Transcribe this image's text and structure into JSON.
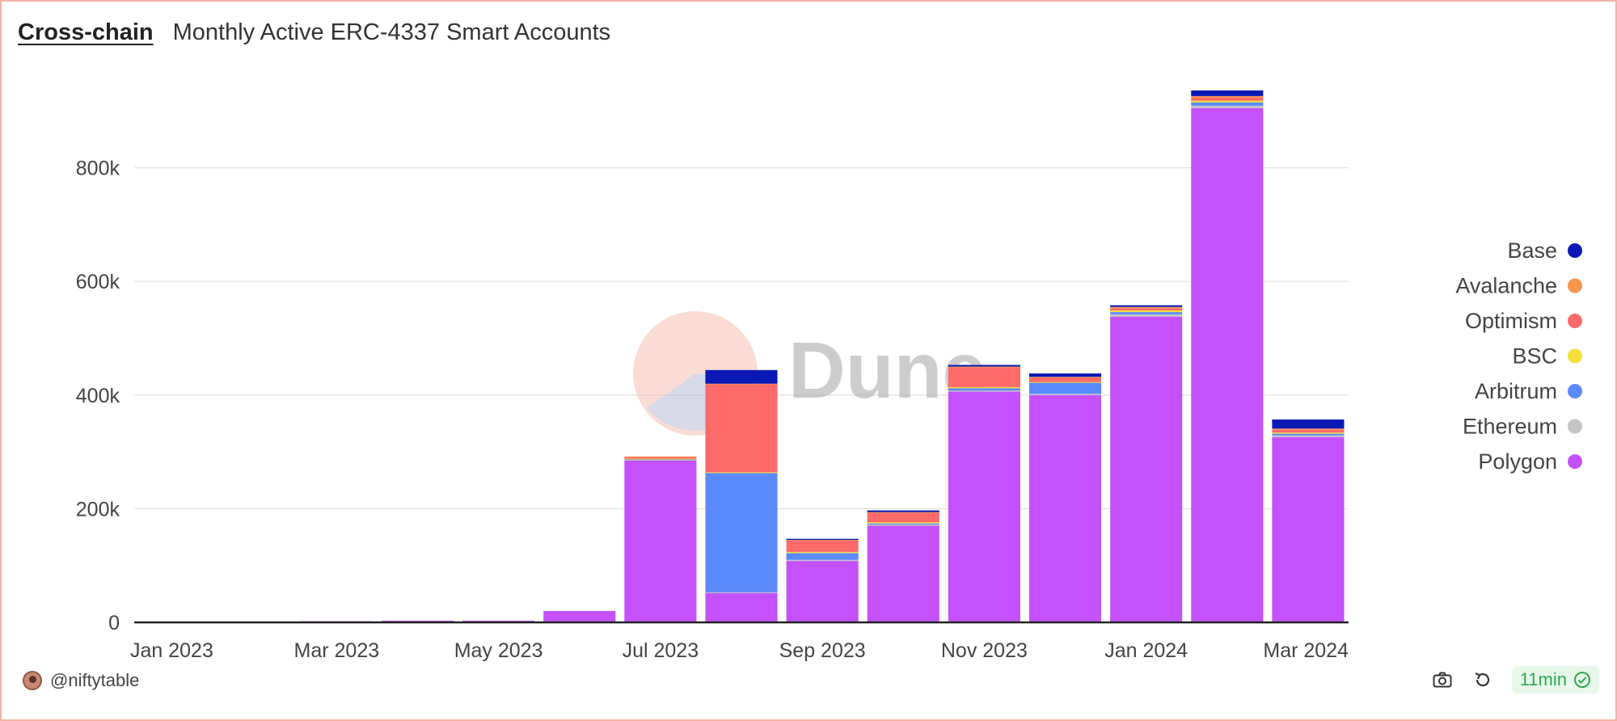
{
  "header": {
    "link_label": "Cross-chain",
    "title": "Monthly Active ERC-4337 Smart Accounts"
  },
  "footer": {
    "author": "@niftytable",
    "refresh_age": "11min"
  },
  "watermark": "Dune",
  "chart_data": {
    "type": "bar",
    "stacked": true,
    "categories": [
      "Jan 2023",
      "Feb 2023",
      "Mar 2023",
      "Apr 2023",
      "May 2023",
      "Jun 2023",
      "Jul 2023",
      "Aug 2023",
      "Sep 2023",
      "Oct 2023",
      "Nov 2023",
      "Dec 2023",
      "Jan 2024",
      "Feb 2024",
      "Mar 2024"
    ],
    "x_tick_labels": [
      "Jan 2023",
      "Mar 2023",
      "May 2023",
      "Jul 2023",
      "Sep 2023",
      "Nov 2023",
      "Jan 2024",
      "Mar 2024"
    ],
    "y_ticks": [
      0,
      200000,
      400000,
      600000,
      800000
    ],
    "y_tick_labels": [
      "0",
      "200k",
      "400k",
      "600k",
      "800k"
    ],
    "ylim": [
      0,
      960000
    ],
    "grid": true,
    "legend_position": "right",
    "title": "Monthly Active ERC-4337 Smart Accounts",
    "series": [
      {
        "name": "Polygon",
        "color": "#c451fb",
        "values": [
          500,
          1000,
          2000,
          3000,
          3000,
          20000,
          285000,
          52000,
          108000,
          170000,
          406000,
          400000,
          538000,
          905000,
          326000
        ]
      },
      {
        "name": "Ethereum",
        "color": "#c4c4c4",
        "values": [
          0,
          0,
          0,
          0,
          0,
          0,
          1000,
          1000,
          2000,
          2000,
          2000,
          2000,
          4000,
          4000,
          3000
        ]
      },
      {
        "name": "Arbitrum",
        "color": "#5a8afc",
        "values": [
          0,
          0,
          0,
          0,
          0,
          0,
          1000,
          210000,
          12000,
          2000,
          4000,
          20000,
          4000,
          6000,
          3000
        ]
      },
      {
        "name": "BSC",
        "color": "#f6df3b",
        "values": [
          0,
          0,
          0,
          0,
          0,
          0,
          1000,
          1000,
          2000,
          2000,
          2000,
          1000,
          3000,
          3000,
          2000
        ]
      },
      {
        "name": "Optimism",
        "color": "#fd6a6a",
        "values": [
          0,
          0,
          0,
          0,
          0,
          0,
          3000,
          155000,
          20000,
          17000,
          35000,
          8000,
          4000,
          5000,
          5000
        ]
      },
      {
        "name": "Avalanche",
        "color": "#fa9550",
        "values": [
          0,
          0,
          0,
          0,
          0,
          0,
          1000,
          1000,
          1000,
          1000,
          1000,
          1000,
          2000,
          3000,
          2000
        ]
      },
      {
        "name": "Base",
        "color": "#0b19b4",
        "values": [
          0,
          0,
          0,
          0,
          0,
          0,
          0,
          24000,
          2000,
          3000,
          3000,
          6000,
          3000,
          10000,
          16000
        ]
      }
    ]
  }
}
